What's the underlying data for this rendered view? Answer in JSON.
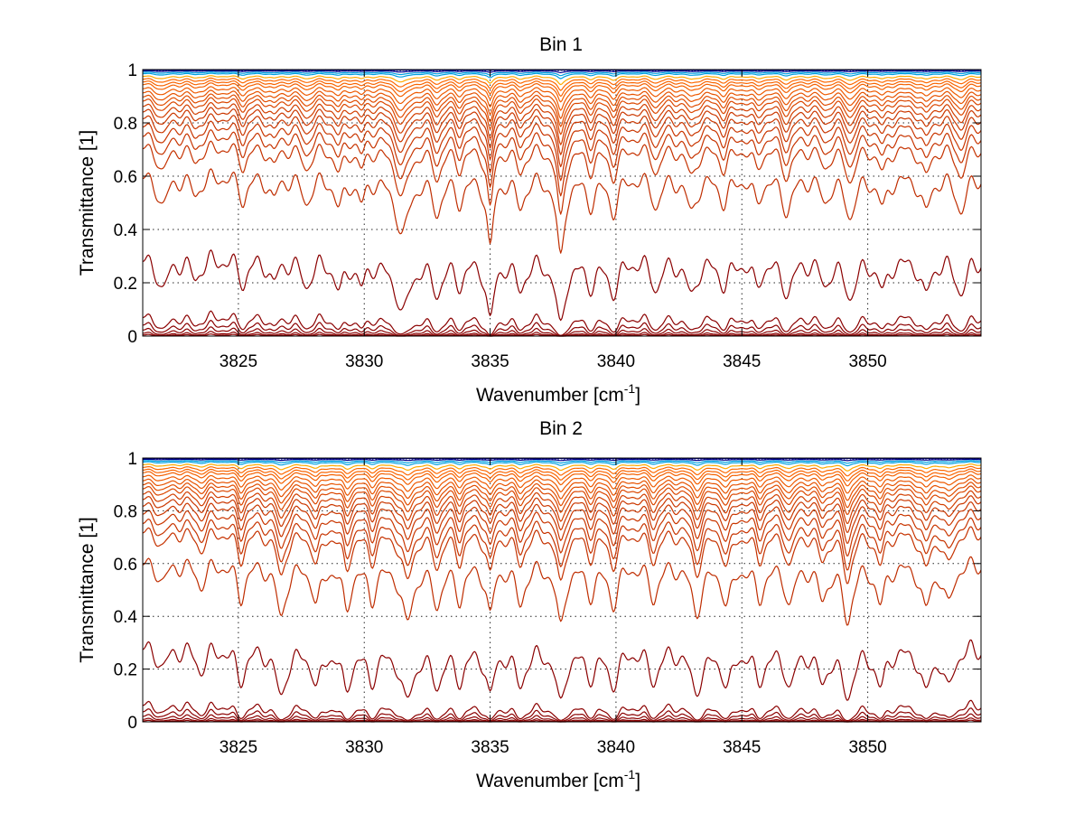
{
  "chart_data": [
    {
      "type": "line",
      "title": "Bin 1",
      "xlabel": "Wavenumber [cm",
      "xlabel_sup": "-1",
      "xlabel_end": "]",
      "ylabel": "Transmittance [1]",
      "xlim": [
        3821.2,
        3854.5
      ],
      "ylim": [
        0,
        1
      ],
      "xticks": [
        3825,
        3830,
        3835,
        3840,
        3845,
        3850
      ],
      "xtick_labels": [
        "3825",
        "3830",
        "3835",
        "3840",
        "3845",
        "3850"
      ],
      "yticks": [
        0,
        0.2,
        0.4,
        0.6,
        0.8,
        1
      ],
      "ytick_labels": [
        "0",
        "0.2",
        "0.4",
        "0.6",
        "0.8",
        "1"
      ],
      "grid": true,
      "line_baselines": [
        1.0,
        0.995,
        0.99,
        0.985,
        0.975,
        0.965,
        0.955,
        0.945,
        0.93,
        0.915,
        0.9,
        0.885,
        0.865,
        0.845,
        0.82,
        0.79,
        0.755,
        0.71,
        0.6,
        0.29,
        0.075,
        0.045,
        0.025,
        0.012,
        0.005
      ],
      "absorption_lines": [
        {
          "x": 3822.0,
          "depth": 0.25,
          "width": 0.22
        },
        {
          "x": 3823.3,
          "depth": 0.15,
          "width": 0.2
        },
        {
          "x": 3825.2,
          "depth": 0.2,
          "width": 0.18
        },
        {
          "x": 3826.4,
          "depth": 0.18,
          "width": 0.18
        },
        {
          "x": 3827.7,
          "depth": 0.22,
          "width": 0.2
        },
        {
          "x": 3829.0,
          "depth": 0.25,
          "width": 0.2
        },
        {
          "x": 3829.9,
          "depth": 0.2,
          "width": 0.18
        },
        {
          "x": 3831.5,
          "depth": 0.55,
          "width": 0.28
        },
        {
          "x": 3832.9,
          "depth": 0.3,
          "width": 0.2
        },
        {
          "x": 3833.8,
          "depth": 0.2,
          "width": 0.18
        },
        {
          "x": 3835.0,
          "depth": 0.7,
          "width": 0.14
        },
        {
          "x": 3836.2,
          "depth": 0.25,
          "width": 0.2
        },
        {
          "x": 3837.8,
          "depth": 0.85,
          "width": 0.16
        },
        {
          "x": 3839.0,
          "depth": 0.22,
          "width": 0.2
        },
        {
          "x": 3839.9,
          "depth": 0.3,
          "width": 0.2
        },
        {
          "x": 3841.6,
          "depth": 0.25,
          "width": 0.2
        },
        {
          "x": 3843.0,
          "depth": 0.3,
          "width": 0.22
        },
        {
          "x": 3844.3,
          "depth": 0.22,
          "width": 0.2
        },
        {
          "x": 3845.6,
          "depth": 0.2,
          "width": 0.2
        },
        {
          "x": 3846.8,
          "depth": 0.3,
          "width": 0.22
        },
        {
          "x": 3848.3,
          "depth": 0.2,
          "width": 0.2
        },
        {
          "x": 3849.3,
          "depth": 0.35,
          "width": 0.22
        },
        {
          "x": 3850.6,
          "depth": 0.25,
          "width": 0.2
        },
        {
          "x": 3852.3,
          "depth": 0.3,
          "width": 0.2
        },
        {
          "x": 3853.7,
          "depth": 0.3,
          "width": 0.22
        }
      ]
    },
    {
      "type": "line",
      "title": "Bin 2",
      "xlabel": "Wavenumber [cm",
      "xlabel_sup": "-1",
      "xlabel_end": "]",
      "ylabel": "Transmittance [1]",
      "xlim": [
        3821.2,
        3854.5
      ],
      "ylim": [
        0,
        1
      ],
      "xticks": [
        3825,
        3830,
        3835,
        3840,
        3845,
        3850
      ],
      "xtick_labels": [
        "3825",
        "3830",
        "3835",
        "3840",
        "3845",
        "3850"
      ],
      "yticks": [
        0,
        0.2,
        0.4,
        0.6,
        0.8,
        1
      ],
      "ytick_labels": [
        "0",
        "0.2",
        "0.4",
        "0.6",
        "0.8",
        "1"
      ],
      "grid": true,
      "line_baselines": [
        1.0,
        0.995,
        0.99,
        0.985,
        0.975,
        0.965,
        0.955,
        0.945,
        0.93,
        0.915,
        0.9,
        0.885,
        0.865,
        0.845,
        0.82,
        0.79,
        0.755,
        0.72,
        0.6,
        0.28,
        0.065,
        0.04,
        0.022,
        0.01,
        0.004
      ],
      "absorption_lines": [
        {
          "x": 3822.0,
          "depth": 0.15,
          "width": 0.2
        },
        {
          "x": 3823.5,
          "depth": 0.18,
          "width": 0.2
        },
        {
          "x": 3825.1,
          "depth": 0.3,
          "width": 0.18
        },
        {
          "x": 3826.7,
          "depth": 0.5,
          "width": 0.2
        },
        {
          "x": 3828.1,
          "depth": 0.35,
          "width": 0.18
        },
        {
          "x": 3829.3,
          "depth": 0.4,
          "width": 0.18
        },
        {
          "x": 3830.3,
          "depth": 0.3,
          "width": 0.18
        },
        {
          "x": 3831.7,
          "depth": 0.55,
          "width": 0.24
        },
        {
          "x": 3832.9,
          "depth": 0.35,
          "width": 0.2
        },
        {
          "x": 3833.8,
          "depth": 0.3,
          "width": 0.18
        },
        {
          "x": 3835.0,
          "depth": 0.45,
          "width": 0.16
        },
        {
          "x": 3836.2,
          "depth": 0.35,
          "width": 0.2
        },
        {
          "x": 3837.8,
          "depth": 0.6,
          "width": 0.18
        },
        {
          "x": 3839.0,
          "depth": 0.25,
          "width": 0.2
        },
        {
          "x": 3839.9,
          "depth": 0.35,
          "width": 0.2
        },
        {
          "x": 3841.5,
          "depth": 0.3,
          "width": 0.2
        },
        {
          "x": 3843.2,
          "depth": 0.45,
          "width": 0.22
        },
        {
          "x": 3844.4,
          "depth": 0.35,
          "width": 0.2
        },
        {
          "x": 3845.7,
          "depth": 0.3,
          "width": 0.2
        },
        {
          "x": 3846.9,
          "depth": 0.35,
          "width": 0.2
        },
        {
          "x": 3848.2,
          "depth": 0.3,
          "width": 0.2
        },
        {
          "x": 3849.2,
          "depth": 0.55,
          "width": 0.2
        },
        {
          "x": 3850.5,
          "depth": 0.35,
          "width": 0.2
        },
        {
          "x": 3852.3,
          "depth": 0.4,
          "width": 0.2
        },
        {
          "x": 3853.2,
          "depth": 0.35,
          "width": 0.2
        }
      ]
    }
  ],
  "colors": {
    "low_transmittance": "#8b0000",
    "mid_transmittance": "#b01e00",
    "high_transmittance": "#ff6a00",
    "top_yellow": "#ffaa00",
    "top_cyan": "#00a0e0",
    "top_blue": "#00008b"
  }
}
